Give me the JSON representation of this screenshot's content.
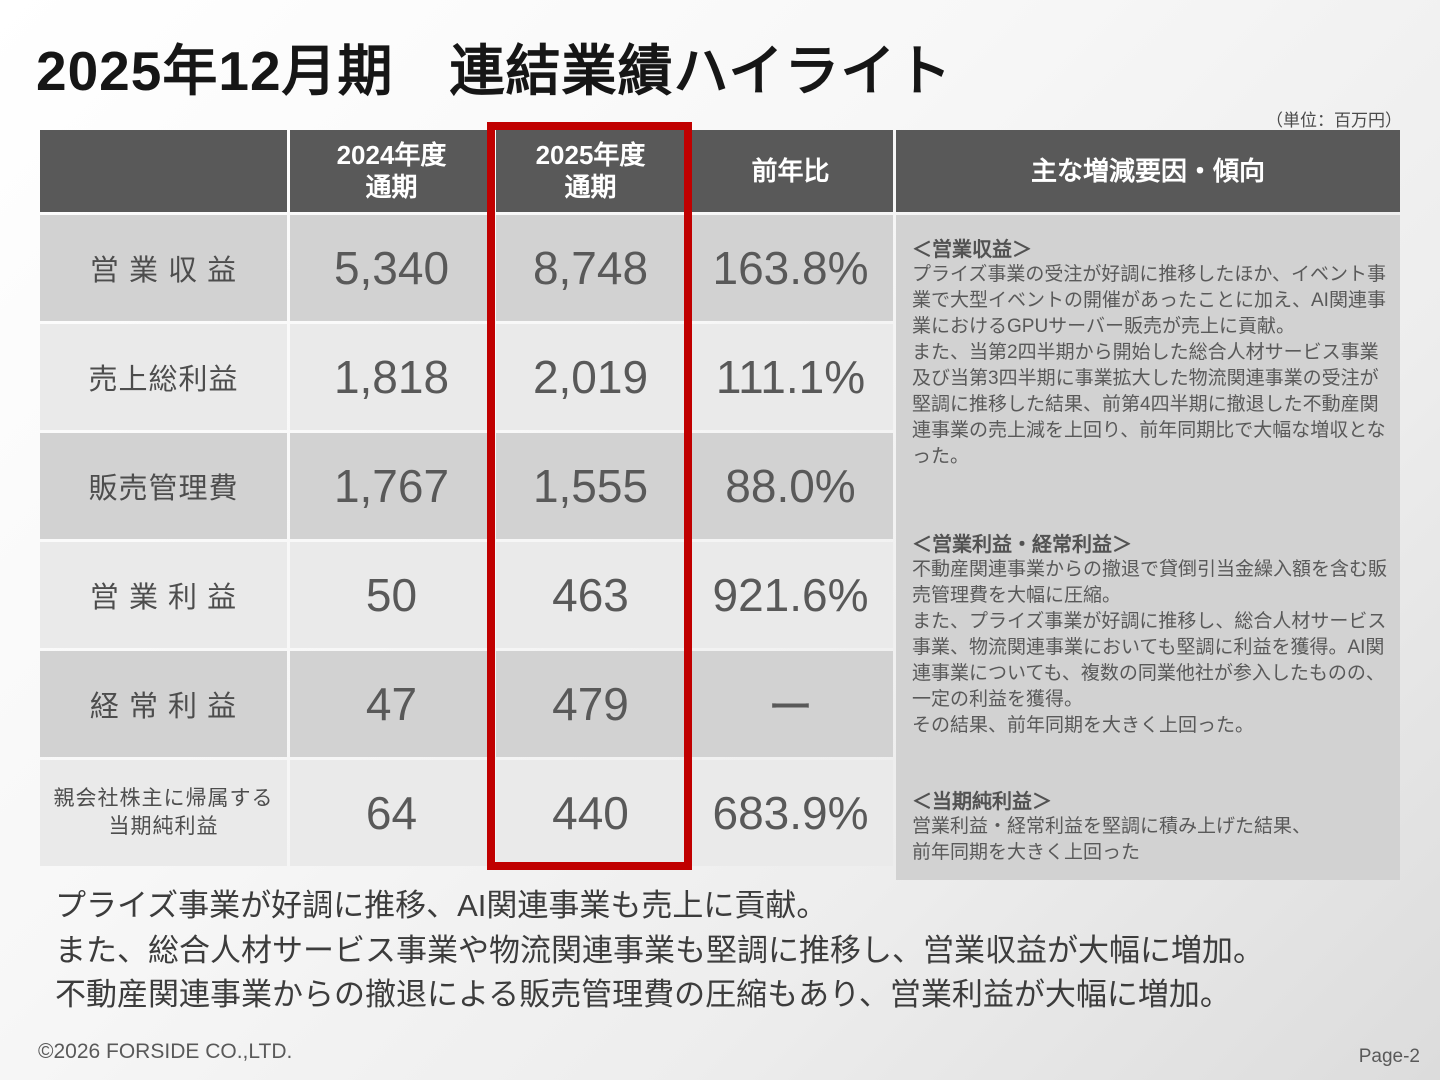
{
  "slide": {
    "title": "2025年12月期　連結業績ハイライト",
    "unit_note": "（単位：百万円）",
    "footer": {
      "copyright": "©2026 FORSIDE CO.,LTD.",
      "page": "Page-2"
    }
  },
  "table": {
    "headers": [
      "",
      "2024年度\n通期",
      "2025年度\n通期",
      "前年比",
      "主な増減要因・傾向"
    ],
    "rows": [
      {
        "label": "営 業 収 益",
        "fy2024": "5,340",
        "fy2025": "8,748",
        "yoy": "163.8%"
      },
      {
        "label": "売上総利益",
        "fy2024": "1,818",
        "fy2025": "2,019",
        "yoy": "111.1%"
      },
      {
        "label": "販売管理費",
        "fy2024": "1,767",
        "fy2025": "1,555",
        "yoy": "88.0%"
      },
      {
        "label": "営 業 利 益",
        "fy2024": "50",
        "fy2025": "463",
        "yoy": "921.6%"
      },
      {
        "label": "経 常 利 益",
        "fy2024": "47",
        "fy2025": "479",
        "yoy": "ー"
      },
      {
        "label": "親会社株主に帰属する\n当期純利益",
        "fy2024": "64",
        "fy2025": "440",
        "yoy": "683.9%"
      }
    ],
    "factors": [
      {
        "heading": "＜営業収益＞",
        "body": "プライズ事業の受注が好調に推移したほか、イベント事業で大型イベントの開催があったことに加え、AI関連事業におけるGPUサーバー販売が売上に貢献。\nまた、当第2四半期から開始した総合人材サービス事業及び当第3四半期に事業拡大した物流関連事業の受注が堅調に推移した結果、前第4四半期に撤退した不動産関連事業の売上減を上回り、前年同期比で大幅な増収となった。"
      },
      {
        "heading": "＜営業利益・経常利益＞",
        "body": "不動産関連事業からの撤退で貸倒引当金繰入額を含む販売管理費を大幅に圧縮。\nまた、プライズ事業が好調に推移し、総合人材サービス事業、物流関連事業においても堅調に利益を獲得。AI関連事業についても、複数の同業他社が参入したものの、一定の利益を獲得。\nその結果、前年同期を大きく上回った。"
      },
      {
        "heading": "＜当期純利益＞",
        "body": "営業利益・経常利益を堅調に積み上げた結果、\n前年同期を大きく上回った"
      }
    ]
  },
  "summary": {
    "lines": [
      "プライズ事業が好調に推移、AI関連事業も売上に貢献。",
      "また、総合人材サービス事業や物流関連事業も堅調に推移し、営業収益が大幅に増加。",
      "不動産関連事業からの撤退による販売管理費の圧縮もあり、営業利益が大幅に増加。"
    ]
  },
  "colors": {
    "header_bg": "#595959",
    "row_dark": "#d2d2d2",
    "row_light": "#eaeaea",
    "highlight_red": "#c00000",
    "text_gray": "#595959"
  }
}
